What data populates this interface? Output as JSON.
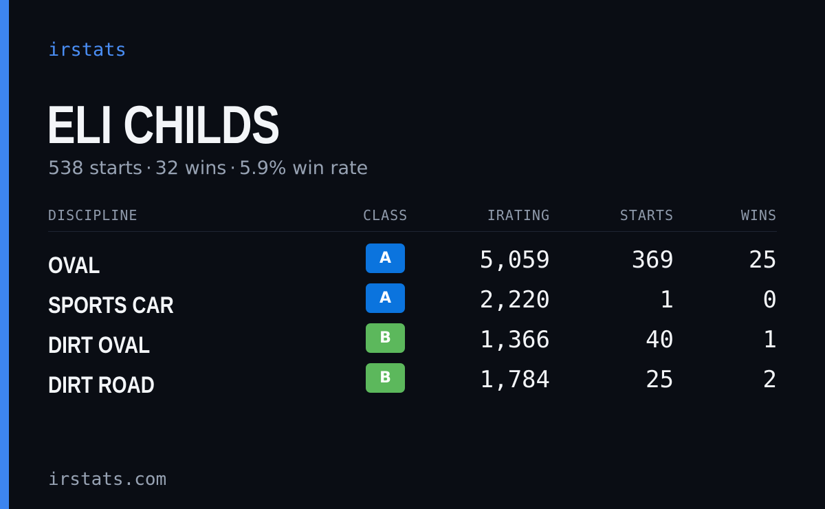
{
  "brand": "irstats",
  "driver": {
    "name": "ELI CHILDS",
    "starts_text": "538 starts",
    "wins_text": "32 wins",
    "win_rate_text": "5.9% win rate",
    "separator": "·"
  },
  "table": {
    "headers": {
      "discipline": "DISCIPLINE",
      "class": "CLASS",
      "irating": "IRATING",
      "starts": "STARTS",
      "wins": "WINS"
    },
    "rows": [
      {
        "discipline": "OVAL",
        "class": "A",
        "class_color": "#0b74de",
        "irating": "5,059",
        "starts": "369",
        "wins": "25"
      },
      {
        "discipline": "SPORTS CAR",
        "class": "A",
        "class_color": "#0b74de",
        "irating": "2,220",
        "starts": "1",
        "wins": "0"
      },
      {
        "discipline": "DIRT OVAL",
        "class": "B",
        "class_color": "#5cb85c",
        "irating": "1,366",
        "starts": "40",
        "wins": "1"
      },
      {
        "discipline": "DIRT ROAD",
        "class": "B",
        "class_color": "#5cb85c",
        "irating": "1,784",
        "starts": "25",
        "wins": "2"
      }
    ]
  },
  "footer": "irstats.com",
  "colors": {
    "accent": "#3d85f0",
    "background": "#0a0d14",
    "brand_text": "#4a8ef5"
  }
}
